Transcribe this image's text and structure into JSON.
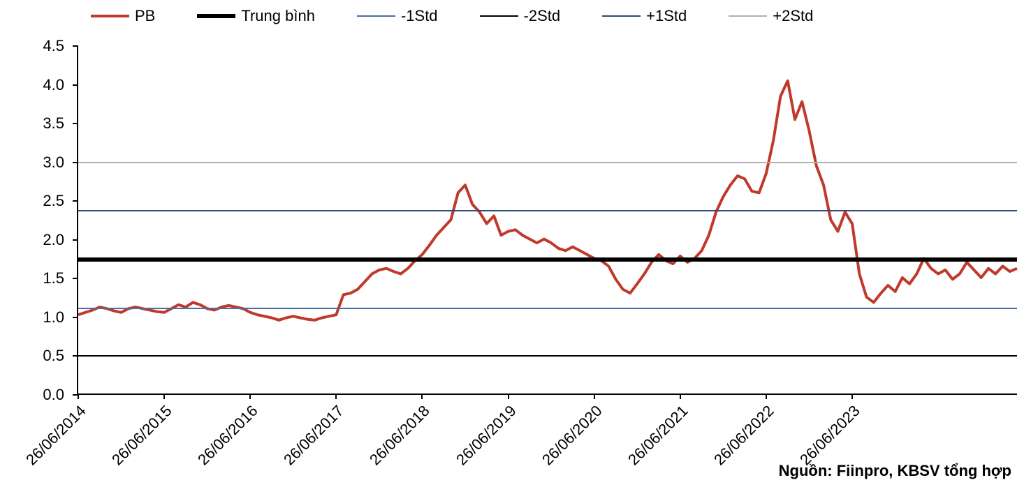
{
  "chart": {
    "type": "line",
    "background_color": "#ffffff",
    "axis_color": "#000000",
    "label_color": "#000000",
    "label_fontsize": 22,
    "legend": [
      {
        "key": "pb",
        "label": "PB",
        "color": "#c0392b",
        "width": 4,
        "style": "solid"
      },
      {
        "key": "mean",
        "label": "Trung bình",
        "color": "#000000",
        "width": 6,
        "style": "solid"
      },
      {
        "key": "m1std",
        "label": "-1Std",
        "color": "#4a6fa5",
        "width": 2,
        "style": "solid"
      },
      {
        "key": "m2std",
        "label": "-2Std",
        "color": "#000000",
        "width": 2,
        "style": "solid"
      },
      {
        "key": "p1std",
        "label": "+1Std",
        "color": "#2c4a7a",
        "width": 2,
        "style": "solid"
      },
      {
        "key": "p2std",
        "label": "+2Std",
        "color": "#b0b0b0",
        "width": 2,
        "style": "solid"
      }
    ],
    "ylim": [
      0.0,
      4.5
    ],
    "yticks": [
      0.0,
      0.5,
      1.0,
      1.5,
      2.0,
      2.5,
      3.0,
      3.5,
      4.0,
      4.5
    ],
    "ytick_labels": [
      "0.0",
      "0.5",
      "1.0",
      "1.5",
      "2.0",
      "2.5",
      "3.0",
      "3.5",
      "4.0",
      "4.5"
    ],
    "xticks": [
      "26/06/2014",
      "26/06/2015",
      "26/06/2016",
      "26/06/2017",
      "26/06/2018",
      "26/06/2019",
      "26/06/2020",
      "26/06/2021",
      "26/06/2022",
      "26/06/2023"
    ],
    "hlines": {
      "mean": 1.75,
      "m1std": 1.12,
      "m2std": 0.5,
      "p1std": 2.38,
      "p2std": 3.0
    },
    "pb_series": [
      1.02,
      1.05,
      1.08,
      1.12,
      1.1,
      1.07,
      1.05,
      1.1,
      1.12,
      1.1,
      1.08,
      1.06,
      1.05,
      1.1,
      1.15,
      1.12,
      1.18,
      1.15,
      1.1,
      1.08,
      1.12,
      1.14,
      1.12,
      1.1,
      1.05,
      1.02,
      1.0,
      0.98,
      0.95,
      0.98,
      1.0,
      0.98,
      0.96,
      0.95,
      0.98,
      1.0,
      1.02,
      1.28,
      1.3,
      1.35,
      1.45,
      1.55,
      1.6,
      1.62,
      1.58,
      1.55,
      1.62,
      1.72,
      1.8,
      1.92,
      2.05,
      2.15,
      2.25,
      2.6,
      2.7,
      2.45,
      2.35,
      2.2,
      2.3,
      2.05,
      2.1,
      2.12,
      2.05,
      2.0,
      1.95,
      2.0,
      1.95,
      1.88,
      1.85,
      1.9,
      1.85,
      1.8,
      1.75,
      1.72,
      1.65,
      1.48,
      1.35,
      1.3,
      1.42,
      1.55,
      1.7,
      1.8,
      1.72,
      1.68,
      1.78,
      1.7,
      1.75,
      1.85,
      2.05,
      2.35,
      2.55,
      2.7,
      2.82,
      2.78,
      2.62,
      2.6,
      2.85,
      3.28,
      3.85,
      4.05,
      3.55,
      3.78,
      3.4,
      2.95,
      2.7,
      2.25,
      2.1,
      2.35,
      2.2,
      1.55,
      1.25,
      1.18,
      1.3,
      1.4,
      1.32,
      1.5,
      1.42,
      1.55,
      1.75,
      1.62,
      1.55,
      1.6,
      1.48,
      1.55,
      1.7,
      1.6,
      1.5,
      1.62,
      1.55,
      1.65,
      1.58,
      1.62
    ],
    "source": "Nguồn: Fiinpro, KBSV tổng hợp"
  }
}
